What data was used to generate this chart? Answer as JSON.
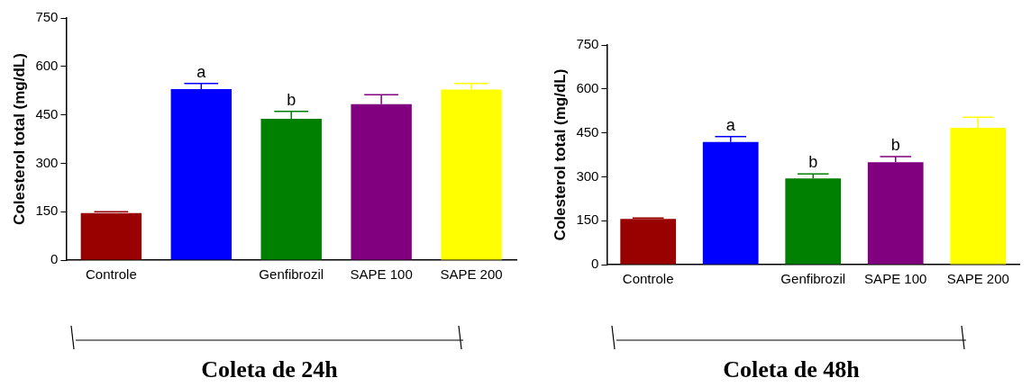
{
  "chart_data": [
    {
      "type": "bar",
      "ylabel": "Colesterol total (mg/dL)",
      "xlabel": "Coleta de 24h",
      "categories": [
        "Controle",
        null,
        "Genfibrozil",
        "SAPE 100",
        "SAPE 200"
      ],
      "values": [
        146,
        530,
        438,
        483,
        528
      ],
      "colors": [
        "#990000",
        "#0000ff",
        "#008000",
        "#800080",
        "#ffff00"
      ],
      "errors": [
        [
          146,
          150
        ],
        [
          530,
          547
        ],
        [
          438,
          461
        ],
        [
          483,
          512
        ],
        [
          528,
          547
        ]
      ],
      "ylim": [
        0,
        750
      ],
      "yticks": [
        0,
        150,
        300,
        450,
        600,
        750
      ],
      "grid": false,
      "legend": false,
      "annotations": [
        {
          "text": "a",
          "y": 547
        },
        {
          "text": "b",
          "x": "Genfibrozil",
          "y": 461
        }
      ]
    },
    {
      "type": "bar",
      "ylabel": "Colesterol total (mg/dL)",
      "xlabel": "Coleta de 48h",
      "categories": [
        "Controle",
        null,
        "Genfibrozil",
        "SAPE 100",
        "SAPE 200"
      ],
      "values": [
        156,
        419,
        294,
        350,
        467
      ],
      "colors": [
        "#990000",
        "#0000ff",
        "#008000",
        "#800080",
        "#ffff00"
      ],
      "errors": [
        [
          156,
          159
        ],
        [
          419,
          437
        ],
        [
          294,
          310
        ],
        [
          350,
          369
        ],
        [
          467,
          503
        ]
      ],
      "ylim": [
        0,
        750
      ],
      "yticks": [
        0,
        150,
        300,
        450,
        600,
        750
      ],
      "grid": false,
      "legend": false,
      "annotations": [
        {
          "text": "a",
          "y": 437
        },
        {
          "text": "b",
          "x": "Genfibrozil",
          "y": 310
        },
        {
          "text": "b",
          "x": "SAPE 100",
          "y": 369
        }
      ]
    }
  ]
}
